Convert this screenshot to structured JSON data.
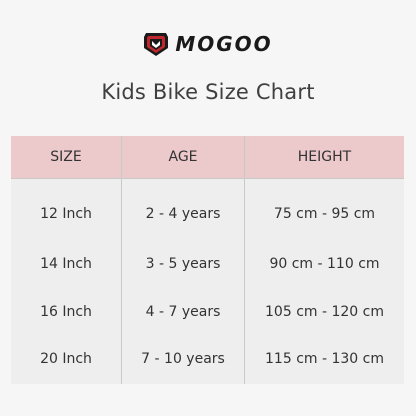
{
  "brand": {
    "name": "MOGOO",
    "accent": "#c0262d"
  },
  "title": "Kids Bike Size Chart",
  "table": {
    "header_bg": "#ecc9cb",
    "columns": [
      "SIZE",
      "AGE",
      "HEIGHT"
    ],
    "rows": [
      [
        "12 Inch",
        "2 - 4 years",
        "75 cm - 95 cm"
      ],
      [
        "14 Inch",
        "3 - 5 years",
        "90 cm - 110 cm"
      ],
      [
        "16 Inch",
        "4 - 7 years",
        "105 cm - 120 cm"
      ],
      [
        "20 Inch",
        "7 - 10 years",
        "115 cm - 130 cm"
      ]
    ]
  }
}
